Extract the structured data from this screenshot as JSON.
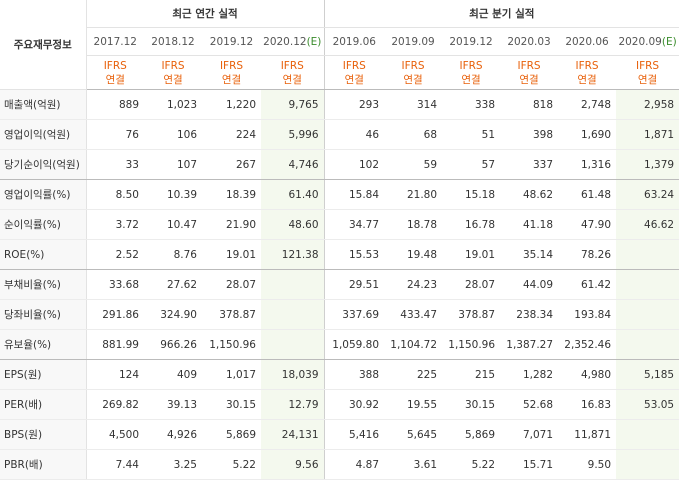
{
  "header": {
    "row_label": "주요재무정보",
    "annual_group": "최근 연간 실적",
    "quarter_group": "최근 분기 실적",
    "ifrs_top": "IFRS",
    "ifrs_bottom": "연결"
  },
  "periods": [
    {
      "label": "2017.12",
      "est": ""
    },
    {
      "label": "2018.12",
      "est": ""
    },
    {
      "label": "2019.12",
      "est": ""
    },
    {
      "label": "2020.12",
      "est": "(E)"
    },
    {
      "label": "2019.06",
      "est": ""
    },
    {
      "label": "2019.09",
      "est": ""
    },
    {
      "label": "2019.12",
      "est": ""
    },
    {
      "label": "2020.03",
      "est": ""
    },
    {
      "label": "2020.06",
      "est": ""
    },
    {
      "label": "2020.09",
      "est": "(E)"
    }
  ],
  "rows": [
    {
      "label": "매출액(억원)",
      "values": [
        "889",
        "1,023",
        "1,220",
        "9,765",
        "293",
        "314",
        "338",
        "818",
        "2,748",
        "2,958"
      ]
    },
    {
      "label": "영업이익(억원)",
      "values": [
        "76",
        "106",
        "224",
        "5,996",
        "46",
        "68",
        "51",
        "398",
        "1,690",
        "1,871"
      ]
    },
    {
      "label": "당기순이익(억원)",
      "values": [
        "33",
        "107",
        "267",
        "4,746",
        "102",
        "59",
        "57",
        "337",
        "1,316",
        "1,379"
      ]
    },
    {
      "label": "영업이익률(%)",
      "values": [
        "8.50",
        "10.39",
        "18.39",
        "61.40",
        "15.84",
        "21.80",
        "15.18",
        "48.62",
        "61.48",
        "63.24"
      ]
    },
    {
      "label": "순이익률(%)",
      "values": [
        "3.72",
        "10.47",
        "21.90",
        "48.60",
        "34.77",
        "18.78",
        "16.78",
        "41.18",
        "47.90",
        "46.62"
      ]
    },
    {
      "label": "ROE(%)",
      "values": [
        "2.52",
        "8.76",
        "19.01",
        "121.38",
        "15.53",
        "19.48",
        "19.01",
        "35.14",
        "78.26",
        ""
      ]
    },
    {
      "label": "부채비율(%)",
      "values": [
        "33.68",
        "27.62",
        "28.07",
        "",
        "29.51",
        "24.23",
        "28.07",
        "44.09",
        "61.42",
        ""
      ]
    },
    {
      "label": "당좌비율(%)",
      "values": [
        "291.86",
        "324.90",
        "378.87",
        "",
        "337.69",
        "433.47",
        "378.87",
        "238.34",
        "193.84",
        ""
      ]
    },
    {
      "label": "유보율(%)",
      "values": [
        "881.99",
        "966.26",
        "1,150.96",
        "",
        "1,059.80",
        "1,104.72",
        "1,150.96",
        "1,387.27",
        "2,352.46",
        ""
      ]
    },
    {
      "label": "EPS(원)",
      "values": [
        "124",
        "409",
        "1,017",
        "18,039",
        "388",
        "225",
        "215",
        "1,282",
        "4,980",
        "5,185"
      ]
    },
    {
      "label": "PER(배)",
      "values": [
        "269.82",
        "39.13",
        "30.15",
        "12.79",
        "30.92",
        "19.55",
        "30.15",
        "52.68",
        "16.83",
        "53.05"
      ]
    },
    {
      "label": "BPS(원)",
      "values": [
        "4,500",
        "4,926",
        "5,869",
        "24,131",
        "5,416",
        "5,645",
        "5,869",
        "7,071",
        "11,871",
        ""
      ]
    },
    {
      "label": "PBR(배)",
      "values": [
        "7.44",
        "3.25",
        "5.22",
        "9.56",
        "4.87",
        "3.61",
        "5.22",
        "15.71",
        "9.50",
        ""
      ]
    }
  ]
}
